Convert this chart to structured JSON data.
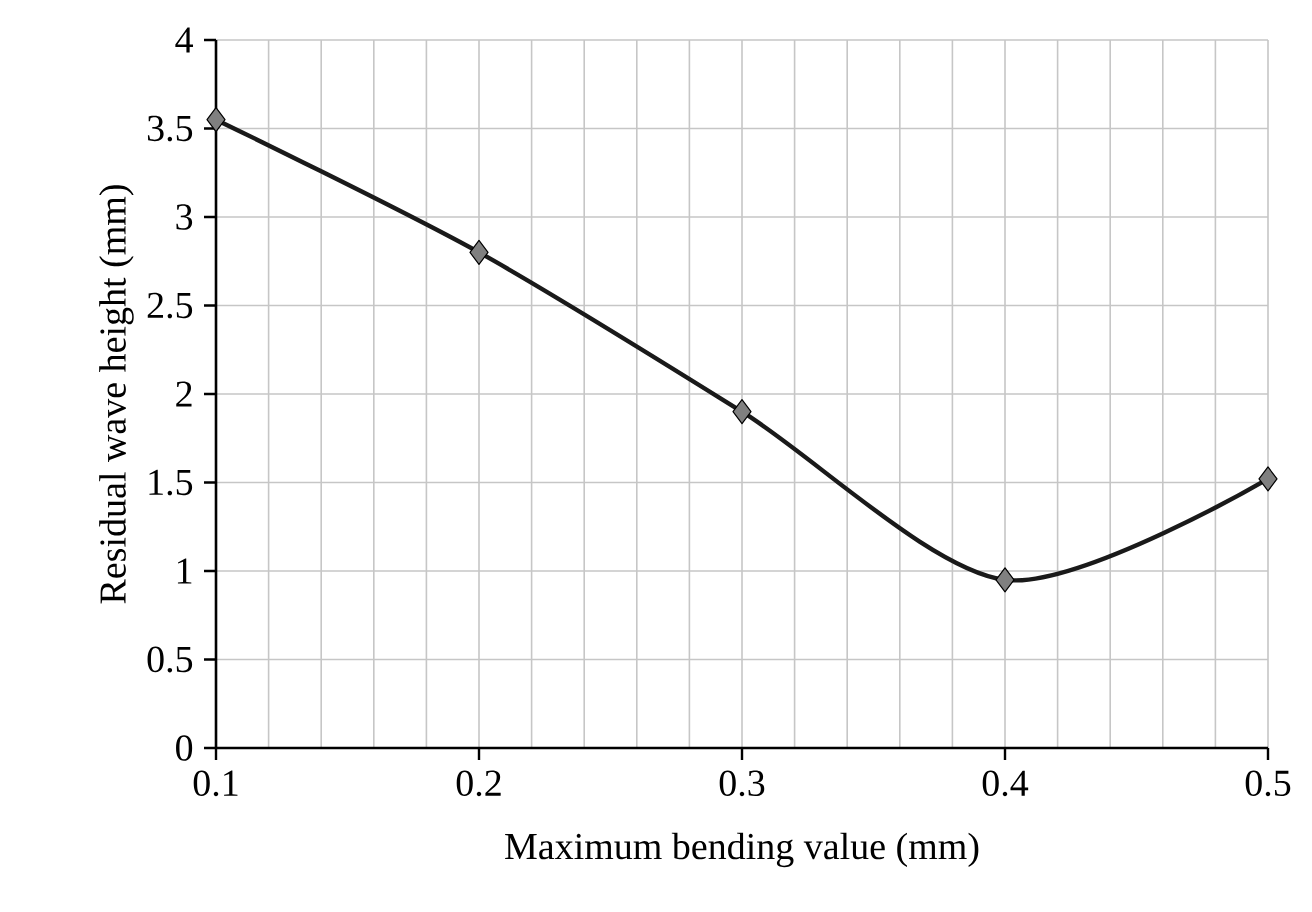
{
  "chart_data": {
    "type": "line",
    "xlabel": "Maximum bending value (mm)",
    "ylabel": "Residual wave height (mm)",
    "x": [
      0.1,
      0.2,
      0.3,
      0.4,
      0.5
    ],
    "series": [
      {
        "color": "#1a1a1a",
        "values": [
          3.55,
          2.8,
          1.9,
          0.95,
          1.52
        ]
      }
    ],
    "xlim": [
      0.1,
      0.5
    ],
    "xticks": [
      0.1,
      0.2,
      0.3,
      0.4,
      0.5
    ],
    "ylim": [
      0,
      4
    ],
    "yticks": [
      0,
      0.5,
      1,
      1.5,
      2,
      2.5,
      3,
      3.5,
      4
    ],
    "grid": true,
    "marker": "diamond",
    "line_style": "solid"
  }
}
